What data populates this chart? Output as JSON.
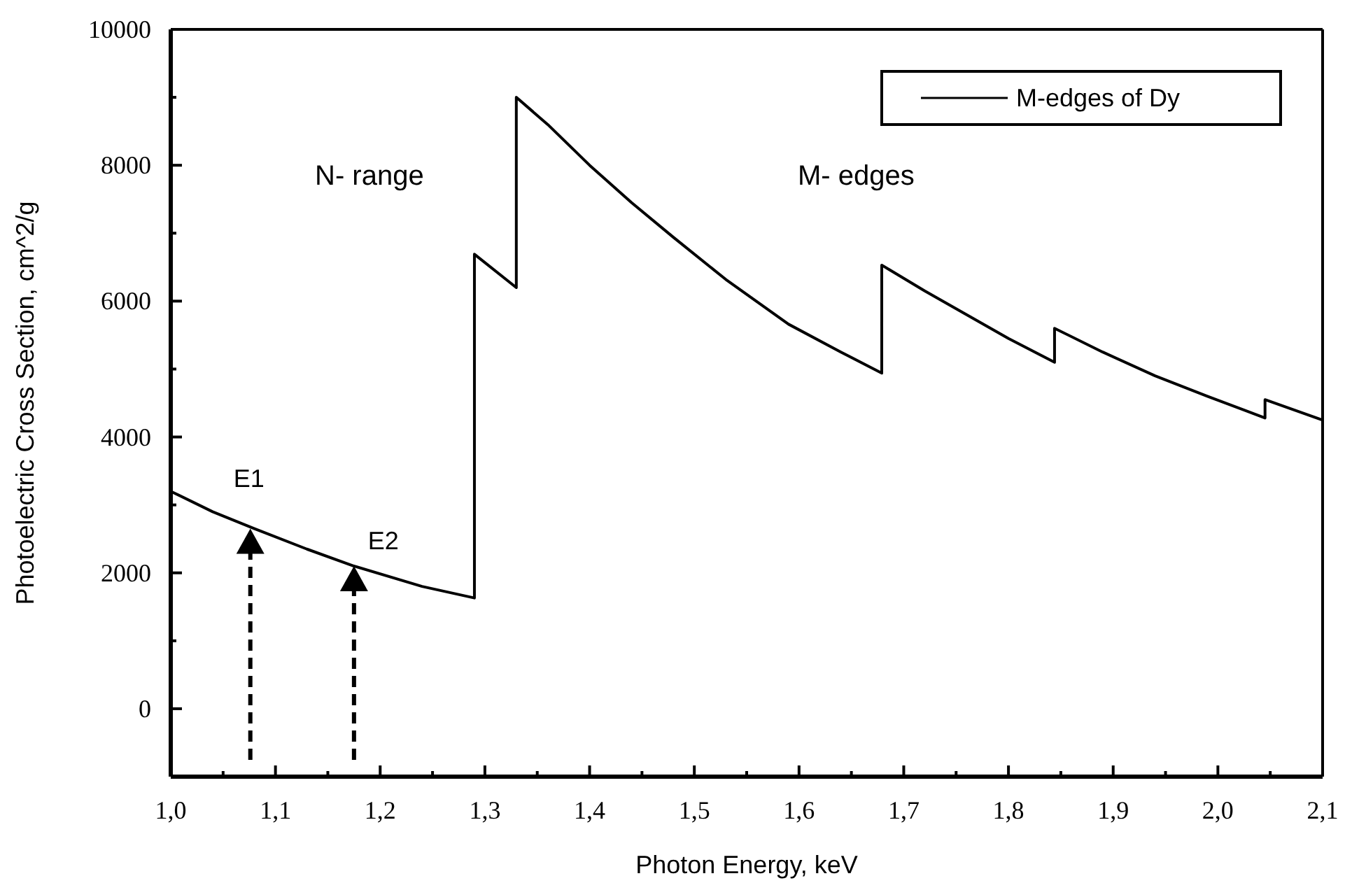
{
  "chart_data": {
    "type": "line",
    "xlabel": "Photon Energy, keV",
    "ylabel": "Photoelectric Cross Section, cm^2/g",
    "xlim": [
      1.0,
      2.1
    ],
    "ylim": [
      -1000,
      10000
    ],
    "xticks": [
      {
        "value": 1.0,
        "label": "1,0"
      },
      {
        "value": 1.05,
        "label": null
      },
      {
        "value": 1.1,
        "label": "1,1"
      },
      {
        "value": 1.15,
        "label": null
      },
      {
        "value": 1.2,
        "label": "1,2"
      },
      {
        "value": 1.25,
        "label": null
      },
      {
        "value": 1.3,
        "label": "1,3"
      },
      {
        "value": 1.35,
        "label": null
      },
      {
        "value": 1.4,
        "label": "1,4"
      },
      {
        "value": 1.45,
        "label": null
      },
      {
        "value": 1.5,
        "label": "1,5"
      },
      {
        "value": 1.55,
        "label": null
      },
      {
        "value": 1.6,
        "label": "1,6"
      },
      {
        "value": 1.65,
        "label": null
      },
      {
        "value": 1.7,
        "label": "1,7"
      },
      {
        "value": 1.75,
        "label": null
      },
      {
        "value": 1.8,
        "label": "1,8"
      },
      {
        "value": 1.85,
        "label": null
      },
      {
        "value": 1.9,
        "label": "1,9"
      },
      {
        "value": 1.95,
        "label": null
      },
      {
        "value": 2.0,
        "label": "2,0"
      },
      {
        "value": 2.05,
        "label": null
      },
      {
        "value": 2.1,
        "label": "2,1"
      }
    ],
    "yticks": [
      0,
      {
        "value": 1000,
        "label": null
      },
      2000,
      {
        "value": 3000,
        "label": null
      },
      4000,
      {
        "value": 5000,
        "label": null
      },
      6000,
      {
        "value": 7000,
        "label": null
      },
      8000,
      {
        "value": 9000,
        "label": null
      },
      10000
    ],
    "legend": "top right",
    "marker": "none",
    "line_style": "solid",
    "grid": false,
    "series": [
      {
        "name": "M-edges of Dy",
        "color": "#000000",
        "x": [
          1.0,
          1.04,
          1.08,
          1.13,
          1.175,
          1.24,
          1.29,
          1.29,
          1.33,
          1.33,
          1.36,
          1.4,
          1.44,
          1.48,
          1.53,
          1.59,
          1.64,
          1.679,
          1.679,
          1.72,
          1.76,
          1.8,
          1.844,
          1.844,
          1.89,
          1.94,
          1.99,
          2.045,
          2.045,
          2.1
        ],
        "values": [
          3200,
          2900,
          2650,
          2350,
          2100,
          1800,
          1630,
          6690,
          6200,
          9000,
          8600,
          8000,
          7450,
          6940,
          6320,
          5660,
          5250,
          4940,
          6530,
          6150,
          5800,
          5450,
          5100,
          5600,
          5250,
          4900,
          4600,
          4280,
          4550,
          4250
        ]
      }
    ],
    "annotations": [
      "N- range",
      "M- edges",
      {
        "text": "E1",
        "x": 1.076,
        "y": 2650
      },
      {
        "text": "E2",
        "x": 1.175,
        "y": 2100
      }
    ]
  }
}
